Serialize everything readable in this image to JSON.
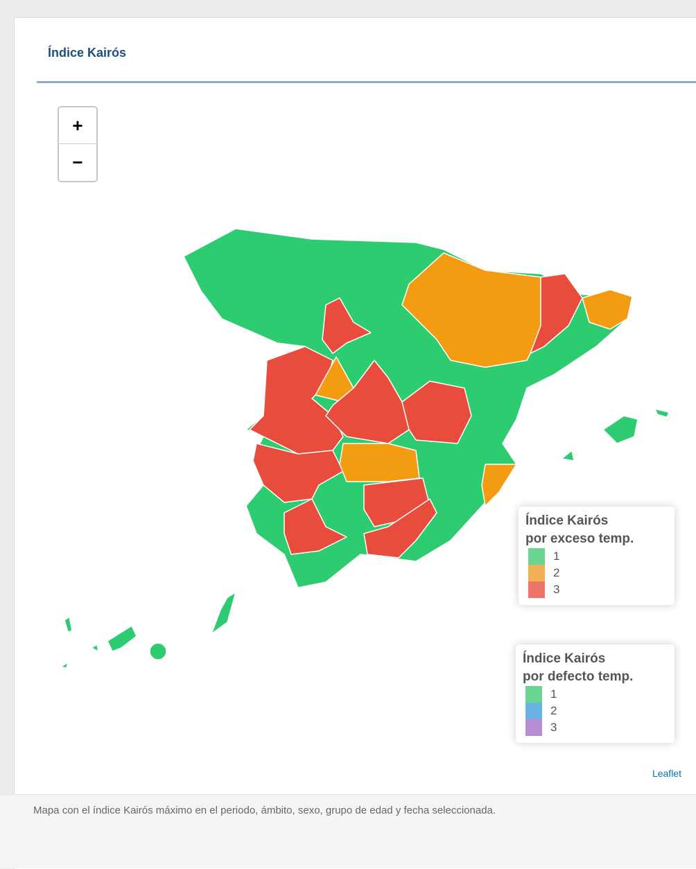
{
  "header": {
    "title": "Índice Kairós"
  },
  "zoom": {
    "in": "+",
    "out": "−"
  },
  "legends": [
    {
      "title_lines": [
        "Índice Kairós",
        "por exceso temp."
      ],
      "items": [
        {
          "label": "1",
          "color": "#6ad590"
        },
        {
          "label": "2",
          "color": "#f3b155"
        },
        {
          "label": "3",
          "color": "#ee7468"
        }
      ]
    },
    {
      "title_lines": [
        "Índice Kairós",
        "por defecto temp."
      ],
      "items": [
        {
          "label": "1",
          "color": "#6ad590"
        },
        {
          "label": "2",
          "color": "#6cb3e3"
        },
        {
          "label": "3",
          "color": "#b78cd3"
        }
      ]
    }
  ],
  "attribution": "Leaflet",
  "caption": "Mapa con el índice Kairós máximo en el periodo, ámbito, sexo, grupo de edad y fecha seleccionada."
}
